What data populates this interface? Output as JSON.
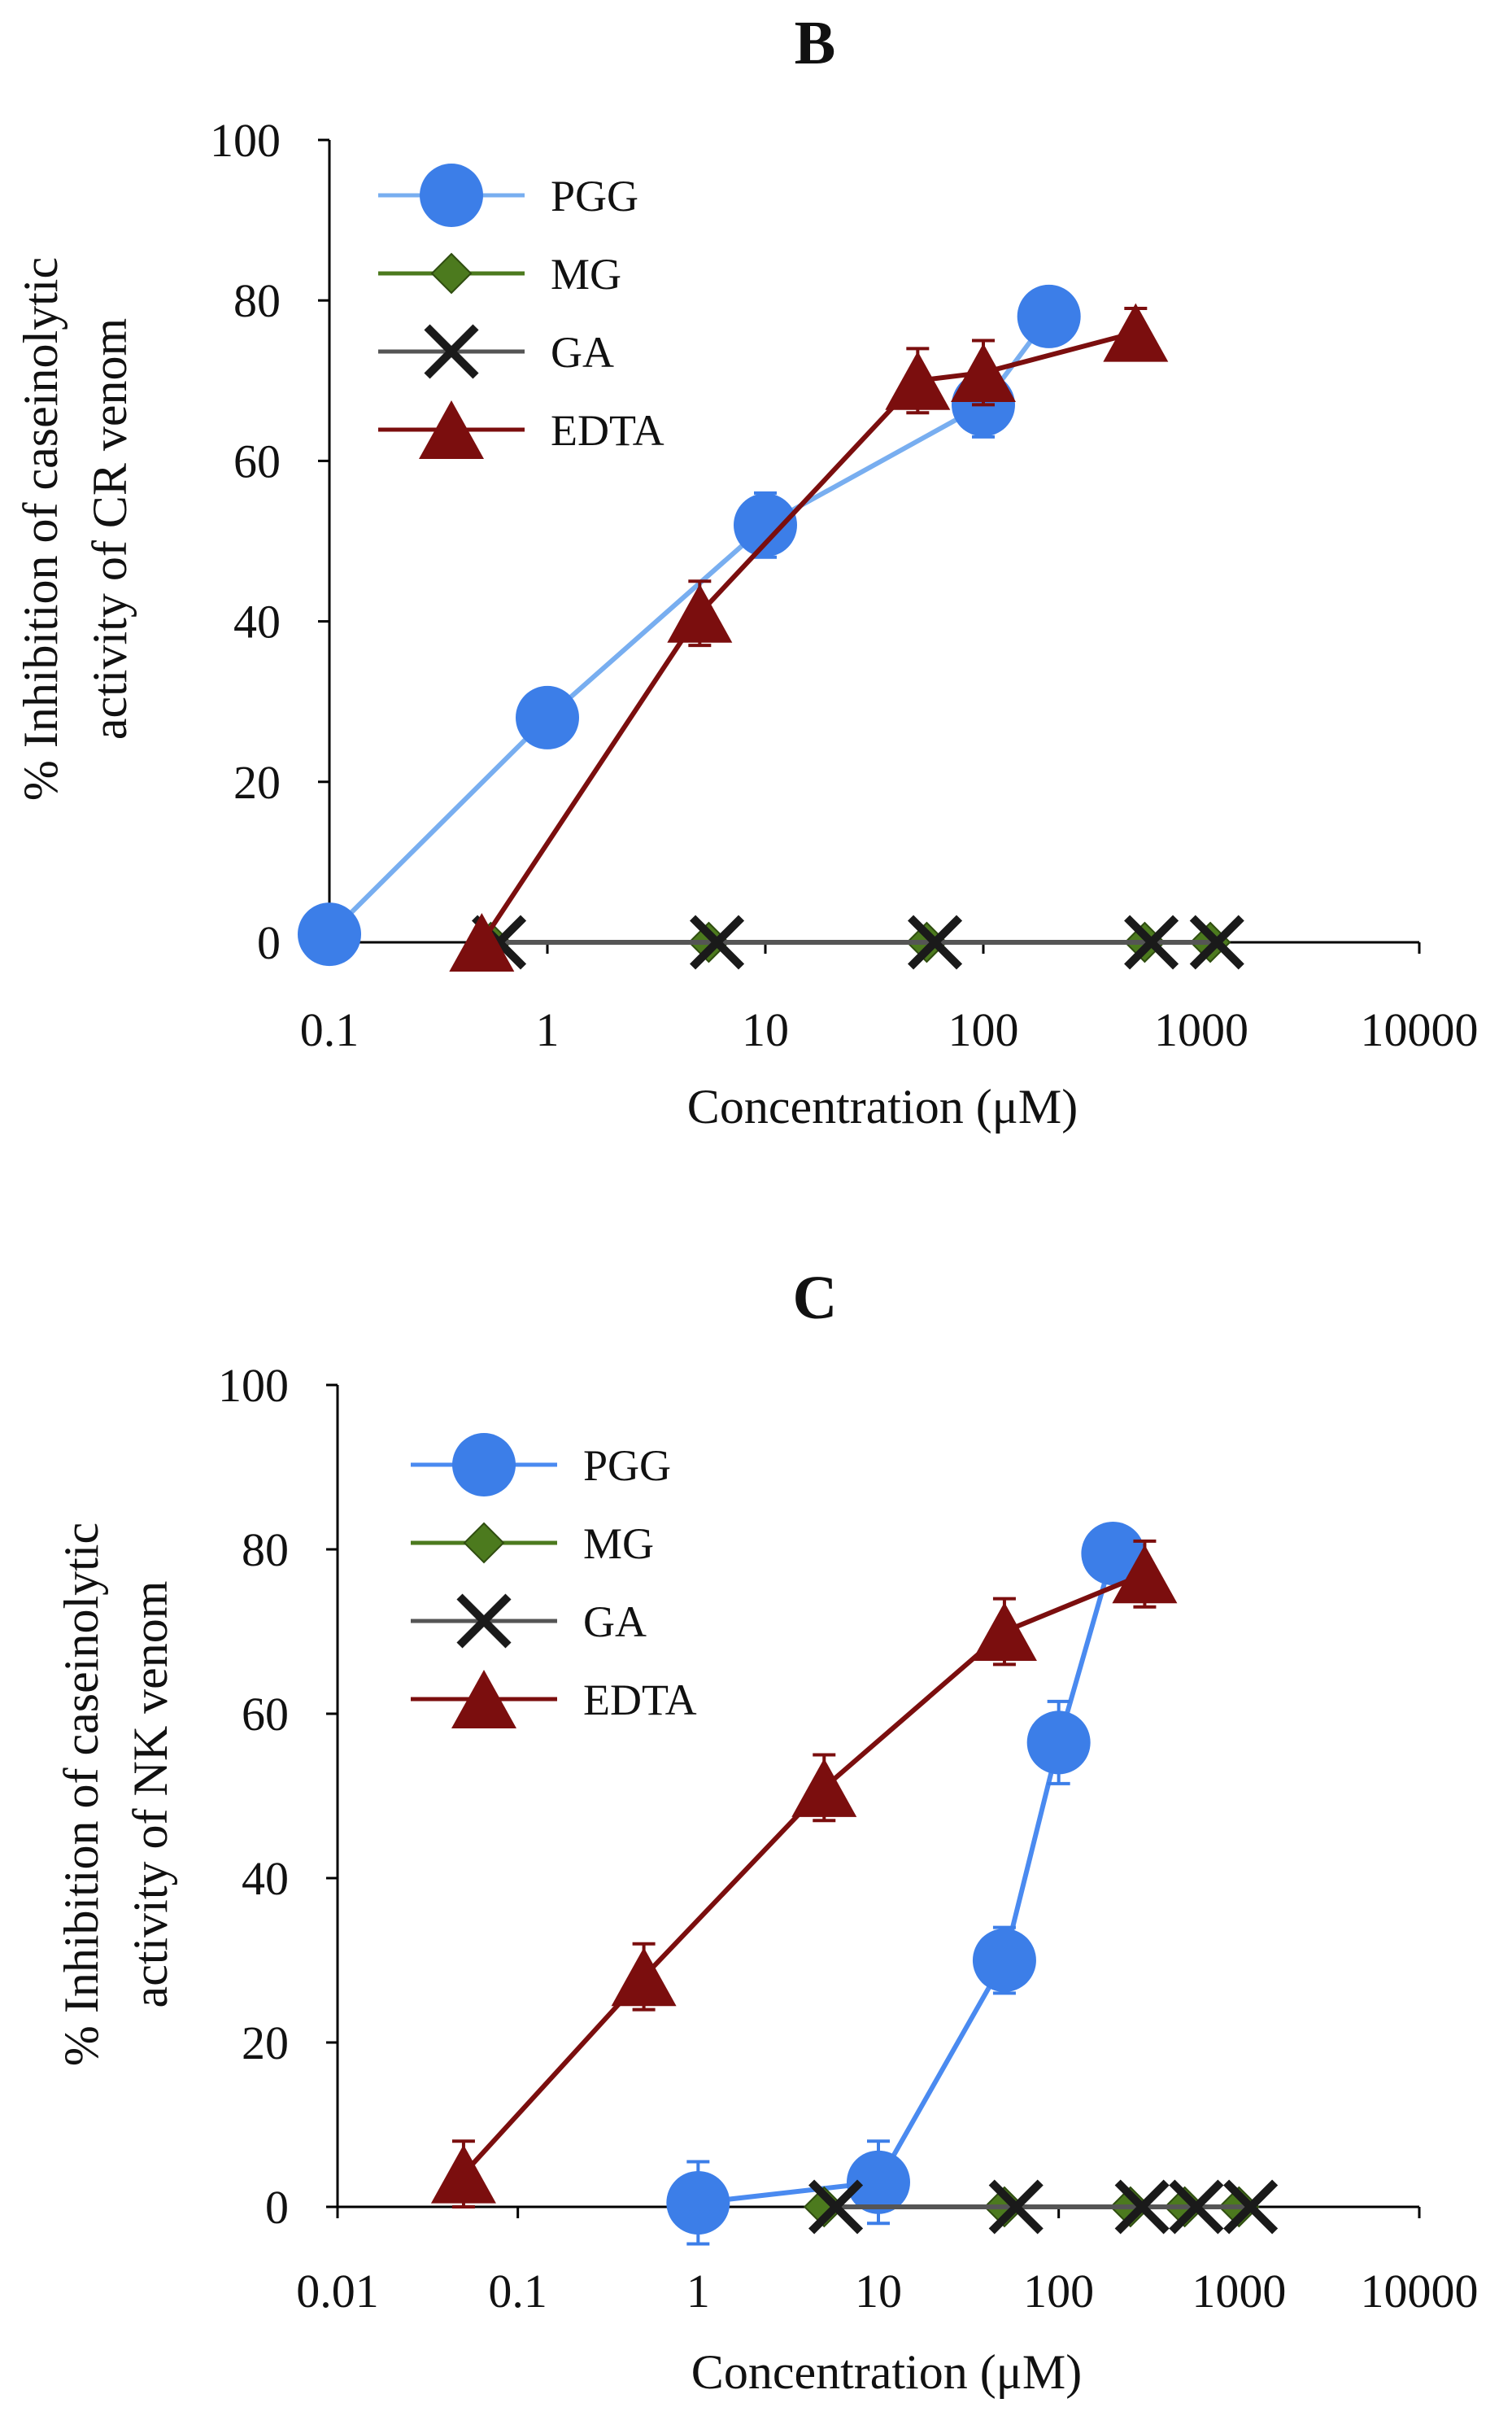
{
  "chart_data": [
    {
      "type": "line",
      "title": "B",
      "xlabel": "Concentration (μM)",
      "ylabel": "% Inhibition of caseinolytic activity of CR venom",
      "x_scale": "log",
      "xlim": [
        0.1,
        10000
      ],
      "ylim": [
        0,
        100
      ],
      "x_ticks": [
        {
          "value": 0.1,
          "label": "0.1"
        },
        {
          "value": 1,
          "label": "1"
        },
        {
          "value": 10,
          "label": "10"
        },
        {
          "value": 100,
          "label": "100"
        },
        {
          "value": 1000,
          "label": "1000"
        },
        {
          "value": 10000,
          "label": "10000"
        }
      ],
      "y_ticks": [
        {
          "value": 0,
          "label": "0"
        },
        {
          "value": 20,
          "label": "20"
        },
        {
          "value": 40,
          "label": "40"
        },
        {
          "value": 60,
          "label": "60"
        },
        {
          "value": 80,
          "label": "80"
        },
        {
          "value": 100,
          "label": "100"
        }
      ],
      "legend_position": "top-left",
      "grid": false,
      "series": [
        {
          "name": "PGG",
          "marker": "circle",
          "color": "#3c7ee8",
          "line_color": "#78aef0",
          "points": [
            {
              "x": 0.1,
              "y": 1,
              "err": 0
            },
            {
              "x": 1,
              "y": 28,
              "err": 3
            },
            {
              "x": 10,
              "y": 52,
              "err": 4
            },
            {
              "x": 100,
              "y": 67,
              "err": 4
            },
            {
              "x": 200,
              "y": 78,
              "err": 3
            }
          ]
        },
        {
          "name": "MG",
          "marker": "diamond",
          "color": "#4c7a1e",
          "line_color": "#4c7a1e",
          "points": [
            {
              "x": 0.55,
              "y": 0,
              "err": 0
            },
            {
              "x": 5.5,
              "y": 0,
              "err": 0
            },
            {
              "x": 55,
              "y": 0,
              "err": 0
            },
            {
              "x": 550,
              "y": 0,
              "err": 0
            },
            {
              "x": 1100,
              "y": 0,
              "err": 0
            }
          ]
        },
        {
          "name": "GA",
          "marker": "cross",
          "color": "#1a1a1a",
          "line_color": "#555555",
          "points": [
            {
              "x": 0.6,
              "y": 0,
              "err": 0
            },
            {
              "x": 6,
              "y": 0,
              "err": 0
            },
            {
              "x": 60,
              "y": 0,
              "err": 0
            },
            {
              "x": 590,
              "y": 0,
              "err": 0
            },
            {
              "x": 1180,
              "y": 0,
              "err": 0
            }
          ]
        },
        {
          "name": "EDTA",
          "marker": "triangle",
          "color": "#7b0e0e",
          "line_color": "#7b0e0e",
          "points": [
            {
              "x": 0.5,
              "y": 0,
              "err": 0
            },
            {
              "x": 5,
              "y": 41,
              "err": 4
            },
            {
              "x": 50,
              "y": 70,
              "err": 4
            },
            {
              "x": 100,
              "y": 71,
              "err": 4
            },
            {
              "x": 500,
              "y": 76,
              "err": 3
            }
          ]
        }
      ]
    },
    {
      "type": "line",
      "title": "C",
      "xlabel": "Concentration (μM)",
      "ylabel": "% Inhibition of caseinolytic activity of NK venom",
      "x_scale": "log",
      "xlim": [
        0.01,
        10000
      ],
      "ylim": [
        0,
        100
      ],
      "x_ticks": [
        {
          "value": 0.01,
          "label": "0.01"
        },
        {
          "value": 0.1,
          "label": "0.1"
        },
        {
          "value": 1,
          "label": "1"
        },
        {
          "value": 10,
          "label": "10"
        },
        {
          "value": 100,
          "label": "100"
        },
        {
          "value": 1000,
          "label": "1000"
        },
        {
          "value": 10000,
          "label": "10000"
        }
      ],
      "y_ticks": [
        {
          "value": 0,
          "label": "0"
        },
        {
          "value": 20,
          "label": "20"
        },
        {
          "value": 40,
          "label": "40"
        },
        {
          "value": 60,
          "label": "60"
        },
        {
          "value": 80,
          "label": "80"
        },
        {
          "value": 100,
          "label": "100"
        }
      ],
      "legend_position": "top-left",
      "grid": false,
      "series": [
        {
          "name": "PGG",
          "marker": "circle",
          "color": "#3c7ee8",
          "line_color": "#4a8af0",
          "points": [
            {
              "x": 1,
              "y": 0.5,
              "err": 5
            },
            {
              "x": 10,
              "y": 3,
              "err": 5
            },
            {
              "x": 50,
              "y": 30,
              "err": 4
            },
            {
              "x": 100,
              "y": 56.5,
              "err": 5
            },
            {
              "x": 200,
              "y": 79.5,
              "err": 3
            }
          ]
        },
        {
          "name": "MG",
          "marker": "diamond",
          "color": "#4c7a1e",
          "line_color": "#4c7a1e",
          "points": [
            {
              "x": 5,
              "y": 0,
              "err": 0
            },
            {
              "x": 50,
              "y": 0,
              "err": 0
            },
            {
              "x": 250,
              "y": 0,
              "err": 0
            },
            {
              "x": 500,
              "y": 0,
              "err": 0
            },
            {
              "x": 1000,
              "y": 0,
              "err": 0
            }
          ]
        },
        {
          "name": "GA",
          "marker": "cross",
          "color": "#1a1a1a",
          "line_color": "#555555",
          "points": [
            {
              "x": 5.8,
              "y": 0,
              "err": 0
            },
            {
              "x": 58,
              "y": 0,
              "err": 0
            },
            {
              "x": 290,
              "y": 0,
              "err": 0
            },
            {
              "x": 580,
              "y": 0,
              "err": 0
            },
            {
              "x": 1160,
              "y": 0,
              "err": 0
            }
          ]
        },
        {
          "name": "EDTA",
          "marker": "triangle",
          "color": "#7b0e0e",
          "line_color": "#7b0e0e",
          "points": [
            {
              "x": 0.05,
              "y": 4,
              "err": 4
            },
            {
              "x": 0.5,
              "y": 28,
              "err": 4
            },
            {
              "x": 5,
              "y": 51,
              "err": 4
            },
            {
              "x": 50,
              "y": 70,
              "err": 4
            },
            {
              "x": 300,
              "y": 77,
              "err": 4
            }
          ]
        }
      ]
    }
  ]
}
